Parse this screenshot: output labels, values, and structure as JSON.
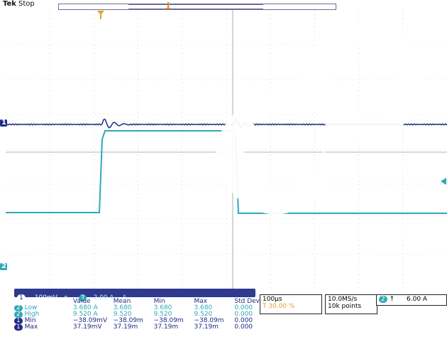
{
  "header": {
    "brand": "Tek",
    "state": "Stop"
  },
  "markers": {
    "ch1_marker": "1",
    "ch2_marker": "2",
    "trigger_marker": "T"
  },
  "channels": {
    "ch1": {
      "label": "1",
      "scale": "100mV",
      "coupling_icon": "ac-wave-icon",
      "color": "#1f2a86"
    },
    "ch2": {
      "label": "2",
      "scale": "2.00 A",
      "coupling_icon": "bandwidth-icon",
      "color": "#2ea9b6"
    }
  },
  "measurements": {
    "headers": [
      "Value",
      "Mean",
      "Min",
      "Max",
      "Std Dev"
    ],
    "rows": [
      {
        "ch": "2",
        "name": "Low",
        "values": [
          "3.680 A",
          "3.680",
          "3.680",
          "3.680",
          "0.000"
        ]
      },
      {
        "ch": "2",
        "name": "High",
        "values": [
          "9.520 A",
          "9.520",
          "9.520",
          "9.520",
          "0.000"
        ]
      },
      {
        "ch": "1",
        "name": "Min",
        "values": [
          "−38.09mV",
          "−38.09m",
          "−38.09m",
          "−38.09m",
          "0.000"
        ]
      },
      {
        "ch": "1",
        "name": "Max",
        "values": [
          "37.19mV",
          "37.19m",
          "37.19m",
          "37.19m",
          "0.000"
        ]
      }
    ]
  },
  "timebase": {
    "scale": "100µs",
    "position": "30.00 %"
  },
  "acquisition": {
    "rate": "10.0MS/s",
    "points": "10k points"
  },
  "trigger": {
    "channel": "2",
    "slope_icon": "rising-edge-icon",
    "level": "6.00 A"
  },
  "colors": {
    "ch1": "#1f2a86",
    "ch2": "#2ea9b6",
    "grid": "#b8b8b8",
    "text": "#2a2a8a"
  }
}
